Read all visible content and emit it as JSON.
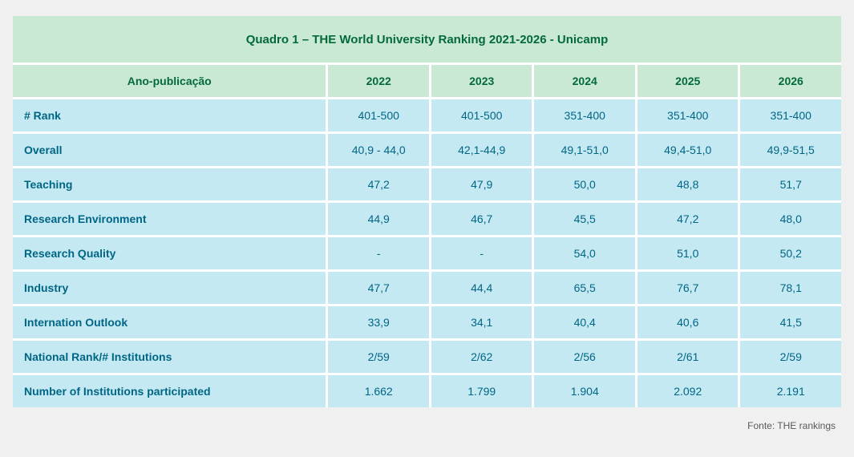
{
  "table": {
    "title": "Quadro 1 – THE World University Ranking 2021-2026 - Unicamp",
    "columns": [
      "Ano-publicação",
      "2022",
      "2023",
      "2024",
      "2025",
      "2026"
    ],
    "rows": [
      {
        "label": "# Rank",
        "values": [
          "401-500",
          "401-500",
          "351-400",
          "351-400",
          "351-400"
        ]
      },
      {
        "label": "Overall",
        "values": [
          "40,9 - 44,0",
          "42,1-44,9",
          "49,1-51,0",
          "49,4-51,0",
          "49,9-51,5"
        ]
      },
      {
        "label": "Teaching",
        "values": [
          "47,2",
          "47,9",
          "50,0",
          "48,8",
          "51,7"
        ]
      },
      {
        "label": "Research Environment",
        "values": [
          "44,9",
          "46,7",
          "45,5",
          "47,2",
          "48,0"
        ]
      },
      {
        "label": "Research Quality",
        "values": [
          "-",
          "-",
          "54,0",
          "51,0",
          "50,2"
        ]
      },
      {
        "label": "Industry",
        "values": [
          "47,7",
          "44,4",
          "65,5",
          "76,7",
          "78,1"
        ]
      },
      {
        "label": "Internation Outlook",
        "values": [
          "33,9",
          "34,1",
          "40,4",
          "40,6",
          "41,5"
        ]
      },
      {
        "label": "National Rank/# Institutions",
        "values": [
          "2/59",
          "2/62",
          "2/56",
          "2/61",
          "2/59"
        ]
      },
      {
        "label": "Number of Institutions participated",
        "values": [
          "1.662",
          "1.799",
          "1.904",
          "2.092",
          "2.191"
        ]
      }
    ],
    "source": "Fonte: THE rankings"
  },
  "chart_data": {
    "type": "table",
    "title": "Quadro 1 – THE World University Ranking 2021-2026 - Unicamp",
    "categories": [
      "2022",
      "2023",
      "2024",
      "2025",
      "2026"
    ],
    "series": [
      {
        "name": "# Rank",
        "values": [
          "401-500",
          "401-500",
          "351-400",
          "351-400",
          "351-400"
        ]
      },
      {
        "name": "Overall",
        "values": [
          "40,9 - 44,0",
          "42,1-44,9",
          "49,1-51,0",
          "49,4-51,0",
          "49,9-51,5"
        ]
      },
      {
        "name": "Teaching",
        "values": [
          47.2,
          47.9,
          50.0,
          48.8,
          51.7
        ]
      },
      {
        "name": "Research Environment",
        "values": [
          44.9,
          46.7,
          45.5,
          47.2,
          48.0
        ]
      },
      {
        "name": "Research Quality",
        "values": [
          null,
          null,
          54.0,
          51.0,
          50.2
        ]
      },
      {
        "name": "Industry",
        "values": [
          47.7,
          44.4,
          65.5,
          76.7,
          78.1
        ]
      },
      {
        "name": "Internation Outlook",
        "values": [
          33.9,
          34.1,
          40.4,
          40.6,
          41.5
        ]
      },
      {
        "name": "National Rank/# Institutions",
        "values": [
          "2/59",
          "2/62",
          "2/56",
          "2/61",
          "2/59"
        ]
      },
      {
        "name": "Number of Institutions participated",
        "values": [
          1662,
          1799,
          1904,
          2092,
          2191
        ]
      }
    ],
    "annotations": [
      "Fonte: THE rankings"
    ]
  },
  "colors": {
    "page_background": "#f0f0f0",
    "green_band_background": "#c9e9d5",
    "green_text": "#046a38",
    "cyan_cell_background": "#c5e9f2",
    "teal_text": "#006685",
    "border": "#ffffff",
    "source_text": "#595959"
  }
}
